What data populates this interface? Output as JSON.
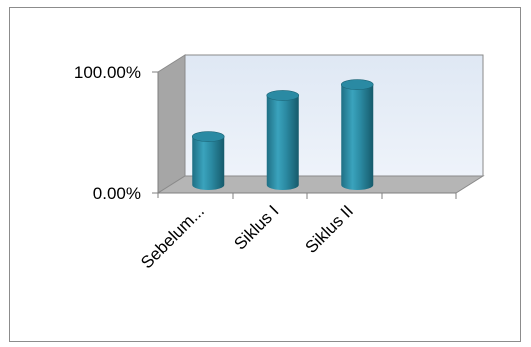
{
  "chart_data": {
    "type": "bar",
    "style": "3d-cylinder",
    "categories": [
      "Sebelum...",
      "Siklus I",
      "Siklus II"
    ],
    "values": [
      0.4,
      0.74,
      0.83
    ],
    "ylim": [
      0,
      1
    ],
    "yticks": [
      "0.00%",
      "100.00%"
    ],
    "grid": false,
    "legend": "none",
    "colors": {
      "bar": "#2e8fa6",
      "back_wall": "#e8eef7",
      "side_wall": "#a6a6a6",
      "floor": "#b3b3b3"
    }
  }
}
